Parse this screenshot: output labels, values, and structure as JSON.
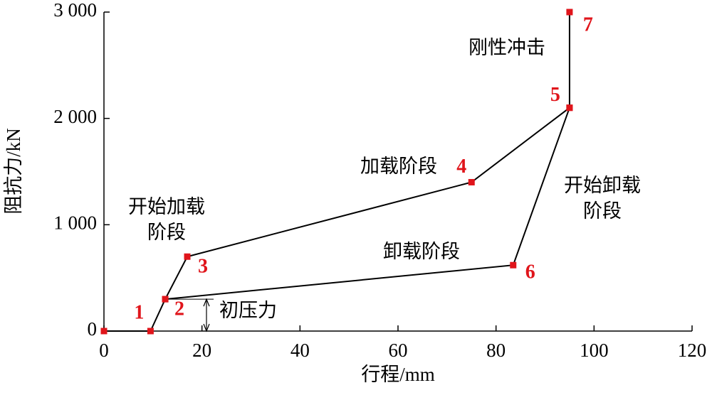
{
  "chart_data": {
    "type": "line",
    "x_label": "行程/mm",
    "y_label": "阻抗力/kN",
    "xlim": [
      0,
      120
    ],
    "xticks": [
      0,
      20,
      40,
      60,
      80,
      100,
      120
    ],
    "ylim": [
      0,
      3000
    ],
    "yticks": [
      0,
      {
        "value": 1000,
        "label": "1 000"
      },
      {
        "value": 2000,
        "label": "2 000"
      },
      {
        "value": 3000,
        "label": "3 000"
      }
    ],
    "line_color": "#000000",
    "marker_color": "#e0151b",
    "series": [
      {
        "x": [
          0,
          9.5,
          12.5,
          17,
          75,
          95,
          95
        ],
        "values": [
          0,
          0,
          300,
          700,
          1400,
          2100,
          3000
        ],
        "point_labels": [
          null,
          "1",
          "2",
          "3",
          "4",
          "5",
          "7"
        ]
      },
      {
        "x": [
          95,
          83.5,
          12.5
        ],
        "values": [
          2100,
          620,
          300
        ],
        "point_labels": [
          null,
          "6",
          null
        ]
      }
    ],
    "annotations": {
      "rigid_impact": "刚性冲击",
      "loading": "加载阶段",
      "start_loading": [
        "开始加载",
        "阶段"
      ],
      "unloading": "卸载阶段",
      "start_unloading": [
        "开始卸载",
        "阶段"
      ],
      "initial_pressure": "初压力"
    }
  }
}
